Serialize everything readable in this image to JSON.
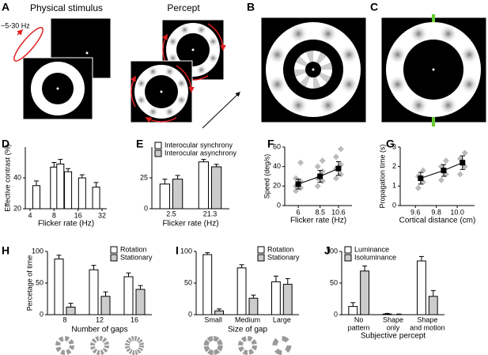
{
  "figure": {
    "panel_a": "A",
    "physical_stimulus": "Physical stimulus",
    "percept": "Percept",
    "frequency": "~5-30 Hz",
    "panel_b": "B",
    "panel_c": "C"
  },
  "chart_data": [
    {
      "panel": "D",
      "type": "bar",
      "x": [
        4.8,
        8,
        9.6,
        12,
        18,
        27
      ],
      "values": [
        35,
        47,
        49,
        44,
        40,
        34
      ],
      "errors": [
        3,
        3,
        3,
        2,
        2,
        3
      ],
      "color": "#ffffff",
      "xlabel": "Flicker rate (Hz)",
      "ylabel": "Effective contrast (%)",
      "xscale": "log",
      "xlim": [
        4,
        32
      ],
      "xticks": [
        4,
        8,
        16,
        32
      ],
      "ylim": [
        20,
        60
      ],
      "yticks": [
        20,
        40
      ]
    },
    {
      "panel": "E",
      "type": "bar",
      "categories": [
        "2.5",
        "21.3"
      ],
      "series": [
        {
          "name": "Interocular synchrony",
          "color": "#ffffff",
          "values": [
            20,
            38
          ],
          "errors": [
            4,
            2
          ]
        },
        {
          "name": "Interocular asynchrony",
          "color": "#cccccc",
          "values": [
            24,
            34
          ],
          "errors": [
            3,
            2
          ]
        }
      ],
      "xlabel": "Flicker rate (Hz)",
      "ylim": [
        0,
        50
      ],
      "yticks": [
        0,
        25
      ],
      "legend": "upper left"
    },
    {
      "panel": "F",
      "type": "scatter",
      "x": [
        6,
        8.5,
        10.6
      ],
      "values": [
        22,
        30,
        38
      ],
      "errors": [
        5,
        6,
        7
      ],
      "points": [
        [
          15,
          18,
          20,
          25,
          28,
          44
        ],
        [
          20,
          25,
          28,
          35,
          40,
          46
        ],
        [
          28,
          32,
          38,
          42,
          50,
          58
        ]
      ],
      "color": "#000000",
      "points_color": "#bbbbbb",
      "xlabel": "Flicker rate (Hz)",
      "ylabel": "Speed (deg/s)",
      "xlim": [
        5,
        11.6
      ],
      "xticks": [
        6,
        8.5,
        10.6
      ],
      "ylim": [
        0,
        60
      ],
      "yticks": [
        0,
        20,
        40,
        60
      ]
    },
    {
      "panel": "G",
      "type": "scatter",
      "x": [
        9.65,
        9.87,
        10.05
      ],
      "values": [
        1.4,
        1.8,
        2.2
      ],
      "errors": [
        0.3,
        0.3,
        0.35
      ],
      "points": [
        [
          0.9,
          1.2,
          1.5,
          1.8
        ],
        [
          1.3,
          1.6,
          2.0,
          2.3
        ],
        [
          1.6,
          2.0,
          2.4,
          2.7
        ]
      ],
      "color": "#000000",
      "points_color": "#bbbbbb",
      "xlabel": "Cortical distance (cm)",
      "ylabel": "Propagation time (s)",
      "xlim": [
        9.5,
        10.12
      ],
      "xticks": [
        9.6,
        9.8,
        {
          "value": 10,
          "label": "10.0"
        }
      ],
      "ylim": [
        0,
        3
      ],
      "yticks": [
        0,
        1,
        2,
        3
      ]
    },
    {
      "panel": "H",
      "type": "bar",
      "categories": [
        "8",
        "12",
        "16"
      ],
      "series": [
        {
          "name": "Rotation",
          "color": "#ffffff",
          "values": [
            88,
            71,
            60
          ],
          "errors": [
            6,
            7,
            6
          ]
        },
        {
          "name": "Stationary",
          "color": "#cccccc",
          "values": [
            12,
            29,
            40
          ],
          "errors": [
            6,
            7,
            6
          ]
        }
      ],
      "xlabel": "Number of gaps",
      "ylabel": "Percetage of time",
      "ylim": [
        0,
        100
      ],
      "yticks": [
        0,
        50,
        100
      ],
      "legend": "upper right",
      "icons": [
        8,
        12,
        16
      ]
    },
    {
      "panel": "I",
      "type": "bar",
      "categories": [
        "Small",
        "Medium",
        "Large"
      ],
      "series": [
        {
          "name": "Rotation",
          "color": "#ffffff",
          "values": [
            95,
            74,
            52
          ],
          "errors": [
            3,
            5,
            9
          ]
        },
        {
          "name": "Stationary",
          "color": "#cccccc",
          "values": [
            6,
            26,
            48
          ],
          "errors": [
            3,
            5,
            9
          ]
        }
      ],
      "xlabel": "Size of gap",
      "ylim": [
        0,
        100
      ],
      "yticks": [
        0,
        50,
        100
      ],
      "legend": "upper right",
      "icons": [
        8,
        8,
        4
      ]
    },
    {
      "panel": "J",
      "type": "bar",
      "categories": [
        [
          "No",
          "pattern"
        ],
        [
          "Shape",
          "only"
        ],
        [
          "Shape",
          "and motion"
        ]
      ],
      "series": [
        {
          "name": "Luminance",
          "color": "#ffffff",
          "values": [
            13,
            1,
            85
          ],
          "errors": [
            6,
            1,
            7
          ]
        },
        {
          "name": "Isoluminance",
          "color": "#cccccc",
          "values": [
            69,
            0,
            29
          ],
          "errors": [
            8,
            1,
            9
          ]
        }
      ],
      "xlabel": "Subjective percept",
      "ylim": [
        0,
        100
      ],
      "yticks": [
        0,
        50,
        100
      ],
      "legend": "upper left"
    }
  ]
}
